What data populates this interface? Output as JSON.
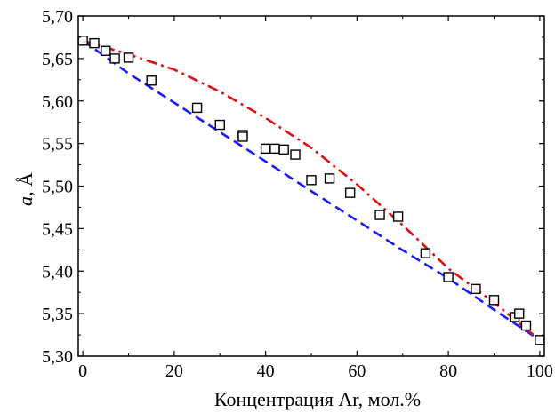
{
  "chart_data": {
    "type": "scatter",
    "xlabel": "Концентрация Ar, мол.%",
    "ylabel": {
      "symbol": "a",
      "unit": ", Å"
    },
    "xlim": [
      -1,
      101
    ],
    "ylim": [
      5.3,
      5.7
    ],
    "x_ticks": [
      {
        "value": 0,
        "label": "0"
      },
      {
        "value": 20,
        "label": "20"
      },
      {
        "value": 40,
        "label": "40"
      },
      {
        "value": 60,
        "label": "60"
      },
      {
        "value": 80,
        "label": "80"
      },
      {
        "value": 100,
        "label": "100"
      }
    ],
    "y_ticks": [
      {
        "value": 5.3,
        "label": "5,30"
      },
      {
        "value": 5.35,
        "label": "5,35"
      },
      {
        "value": 5.4,
        "label": "5,40"
      },
      {
        "value": 5.45,
        "label": "5,45"
      },
      {
        "value": 5.5,
        "label": "5,50"
      },
      {
        "value": 5.55,
        "label": "5,55"
      },
      {
        "value": 5.6,
        "label": "5,60"
      },
      {
        "value": 5.65,
        "label": "5,65"
      },
      {
        "value": 5.7,
        "label": "5,70"
      }
    ],
    "grid": false,
    "series": [
      {
        "kind": "markers",
        "marker": "open-square",
        "color": "#000000",
        "x": [
          0,
          2.5,
          5,
          7,
          10,
          15,
          25,
          30,
          35,
          35,
          40,
          42,
          44,
          46.5,
          50,
          54,
          58.5,
          65,
          69,
          75,
          80,
          86,
          90,
          94.5,
          95.5,
          97,
          100
        ],
        "y": [
          5.671,
          5.668,
          5.659,
          5.65,
          5.651,
          5.624,
          5.592,
          5.572,
          5.56,
          5.558,
          5.544,
          5.544,
          5.543,
          5.537,
          5.507,
          5.509,
          5.492,
          5.466,
          5.464,
          5.421,
          5.393,
          5.379,
          5.366,
          5.346,
          5.35,
          5.336,
          5.319
        ]
      },
      {
        "kind": "line",
        "style": "dashed",
        "color": "#1a1aff",
        "x": [
          0,
          10,
          20,
          30,
          40,
          50,
          60,
          70,
          80,
          90,
          100
        ],
        "y": [
          5.671,
          5.6325,
          5.598,
          5.5635,
          5.529,
          5.494,
          5.4595,
          5.4245,
          5.3915,
          5.3545,
          5.319
        ]
      },
      {
        "kind": "line",
        "style": "dash-dot",
        "color": "#e01010",
        "x": [
          0,
          10,
          20,
          30,
          40,
          50,
          60,
          70,
          80,
          90,
          100
        ],
        "y": [
          5.671,
          5.655,
          5.637,
          5.611,
          5.58,
          5.545,
          5.502,
          5.454,
          5.403,
          5.363,
          5.319
        ]
      }
    ]
  }
}
